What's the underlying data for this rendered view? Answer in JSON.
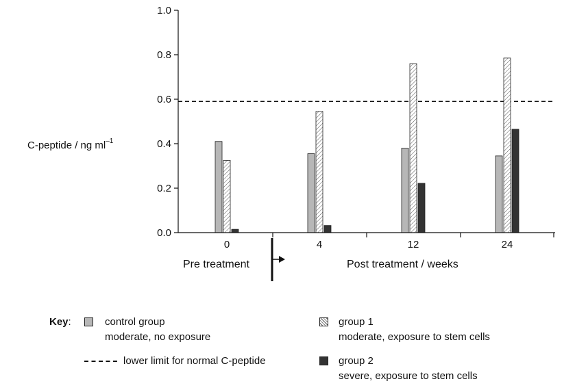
{
  "chart_data": {
    "type": "bar",
    "categories": [
      "0",
      "4",
      "12",
      "24"
    ],
    "series": [
      {
        "name": "control group",
        "values": [
          0.41,
          0.355,
          0.38,
          0.345
        ],
        "color": "#b7b7b7"
      },
      {
        "name": "group 1",
        "values": [
          0.325,
          0.545,
          0.76,
          0.785
        ],
        "color": "#ffffff"
      },
      {
        "name": "group 2",
        "values": [
          0.015,
          0.032,
          0.222,
          0.465
        ],
        "color": "#333333"
      }
    ],
    "ylabel_text": "C-peptide / ng ml",
    "ylabel_sup": "–1",
    "ylim": [
      0,
      1.0
    ],
    "yticks": [
      "0.0",
      "0.2",
      "0.4",
      "0.6",
      "0.8",
      "1.0"
    ],
    "reference_line": {
      "value": 0.59,
      "style": "dashed"
    },
    "pre_label": "Pre treatment",
    "post_label": "Post treatment / weeks",
    "key": {
      "title": "Key",
      "colon": ":",
      "control_line1": "control group",
      "control_line2": "moderate, no exposure",
      "dashed_label": "lower limit for normal C-peptide",
      "group1_line1": "group 1",
      "group1_line2": "moderate, exposure to stem cells",
      "group2_line1": "group 2",
      "group2_line2": "severe, exposure to stem cells"
    }
  }
}
